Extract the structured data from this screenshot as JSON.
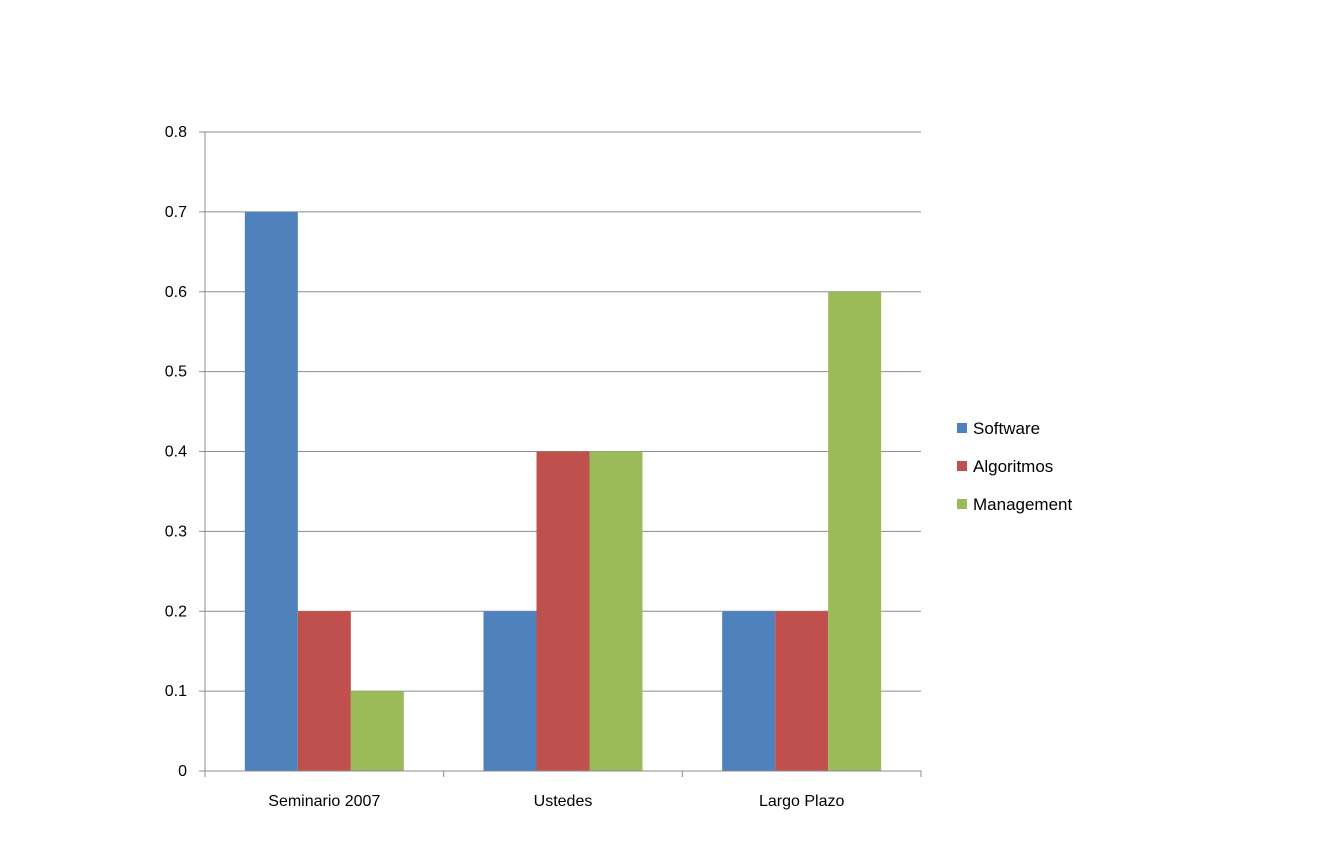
{
  "chart_data": {
    "type": "bar",
    "categories": [
      "Seminario 2007",
      "Ustedes",
      "Largo Plazo"
    ],
    "series": [
      {
        "name": "Software",
        "values": [
          0.7,
          0.2,
          0.2
        ],
        "color": "#4F81BD"
      },
      {
        "name": "Algoritmos",
        "values": [
          0.2,
          0.4,
          0.2
        ],
        "color": "#C0504D"
      },
      {
        "name": "Management",
        "values": [
          0.1,
          0.4,
          0.6
        ],
        "color": "#9BBB59"
      }
    ],
    "ylim": [
      0,
      0.8
    ],
    "yticks": [
      "0",
      "0.1",
      "0.2",
      "0.3",
      "0.4",
      "0.5",
      "0.6",
      "0.7",
      "0.8"
    ],
    "grid": true,
    "legend_position": "right",
    "title": "",
    "xlabel": "",
    "ylabel": ""
  }
}
